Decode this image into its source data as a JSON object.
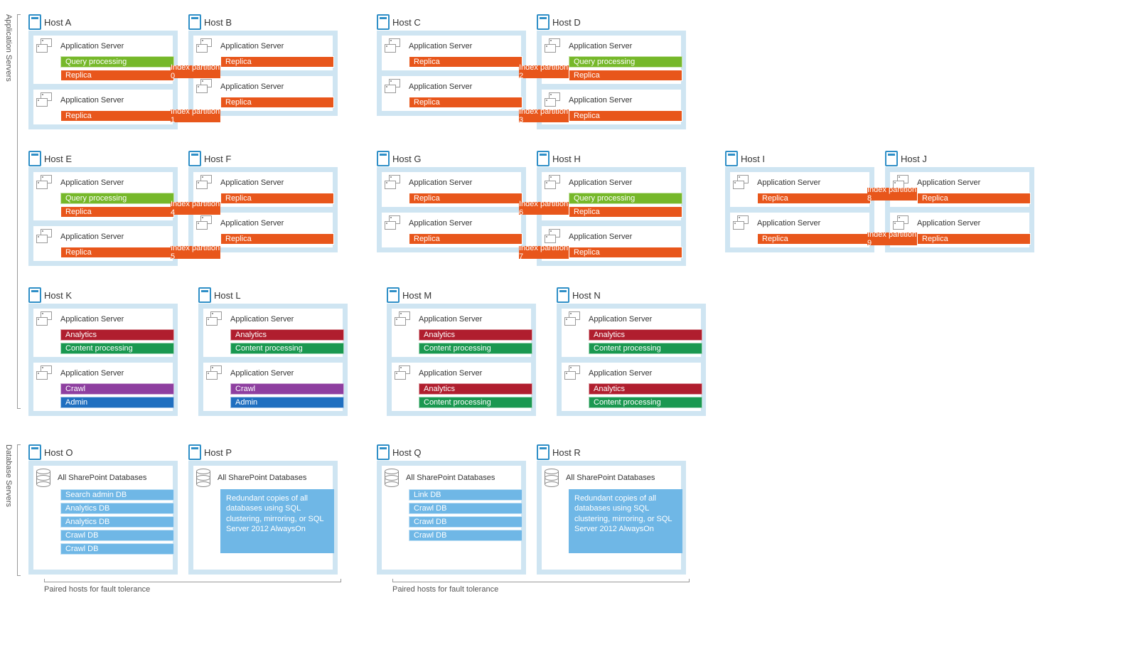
{
  "colors": {
    "hostBg": "#cfe5f2",
    "hostBorder": "#2f8fc7",
    "replica": "#e8561b",
    "query": "#76b82a",
    "analytics": "#b01e2e",
    "content": "#1a9850",
    "crawl": "#8e3fa0",
    "admin": "#1f6fc0",
    "dbTag": "#6fb7e6",
    "dbNote": "#6fb7e6"
  },
  "labels": {
    "appServersSection": "Application Servers",
    "dbServersSection": "Database Servers",
    "appServer": "Application Server",
    "allDb": "All SharePoint Databases",
    "replica": "Replica",
    "query": "Query processing",
    "analytics": "Analytics",
    "content": "Content processing",
    "crawl": "Crawl",
    "admin": "Admin",
    "pairedCaption": "Paired hosts for fault tolerance",
    "redundant": "Redundant copies of all databases using SQL clustering, mirroring, or SQL Server 2012 AlwaysOn"
  },
  "row1": {
    "pairs": [
      {
        "left": "Host A",
        "right": "Host B",
        "partTop": "Index partition 0",
        "partBot": "Index partition 1",
        "queryOnLeft": true,
        "queryOnRight": false
      },
      {
        "left": "Host C",
        "right": "Host D",
        "partTop": "Index partition 2",
        "partBot": "Index partition 3",
        "queryOnLeft": false,
        "queryOnRight": true
      }
    ]
  },
  "row2": {
    "pairs": [
      {
        "left": "Host E",
        "right": "Host F",
        "partTop": "Index partition 4",
        "partBot": "Index partition 5",
        "queryOnLeft": true,
        "queryOnRight": false
      },
      {
        "left": "Host G",
        "right": "Host H",
        "partTop": "Index partition 6",
        "partBot": "Index partition 7",
        "queryOnLeft": false,
        "queryOnRight": true
      },
      {
        "left": "Host I",
        "right": "Host J",
        "partTop": "Index partition 8",
        "partBot": "Index partition 9",
        "queryOnLeft": false,
        "queryOnRight": false
      }
    ]
  },
  "row3": {
    "hosts": [
      {
        "name": "Host K",
        "top": [
          "analytics",
          "content"
        ],
        "bot": [
          "crawl",
          "admin"
        ]
      },
      {
        "name": "Host L",
        "top": [
          "analytics",
          "content"
        ],
        "bot": [
          "crawl",
          "admin"
        ]
      },
      {
        "name": "Host M",
        "top": [
          "analytics",
          "content"
        ],
        "bot": [
          "analytics",
          "content"
        ]
      },
      {
        "name": "Host N",
        "top": [
          "analytics",
          "content"
        ],
        "bot": [
          "analytics",
          "content"
        ]
      }
    ]
  },
  "dbRow": {
    "pairs": [
      {
        "left": {
          "name": "Host O",
          "tags": [
            "Search admin DB",
            "Analytics DB",
            "Analytics DB",
            "Crawl DB",
            "Crawl DB"
          ]
        },
        "right": {
          "name": "Host P",
          "note": true
        }
      },
      {
        "left": {
          "name": "Host Q",
          "tags": [
            "Link DB",
            "Crawl DB",
            "Crawl DB",
            "Crawl DB"
          ]
        },
        "right": {
          "name": "Host R",
          "note": true
        }
      }
    ]
  }
}
